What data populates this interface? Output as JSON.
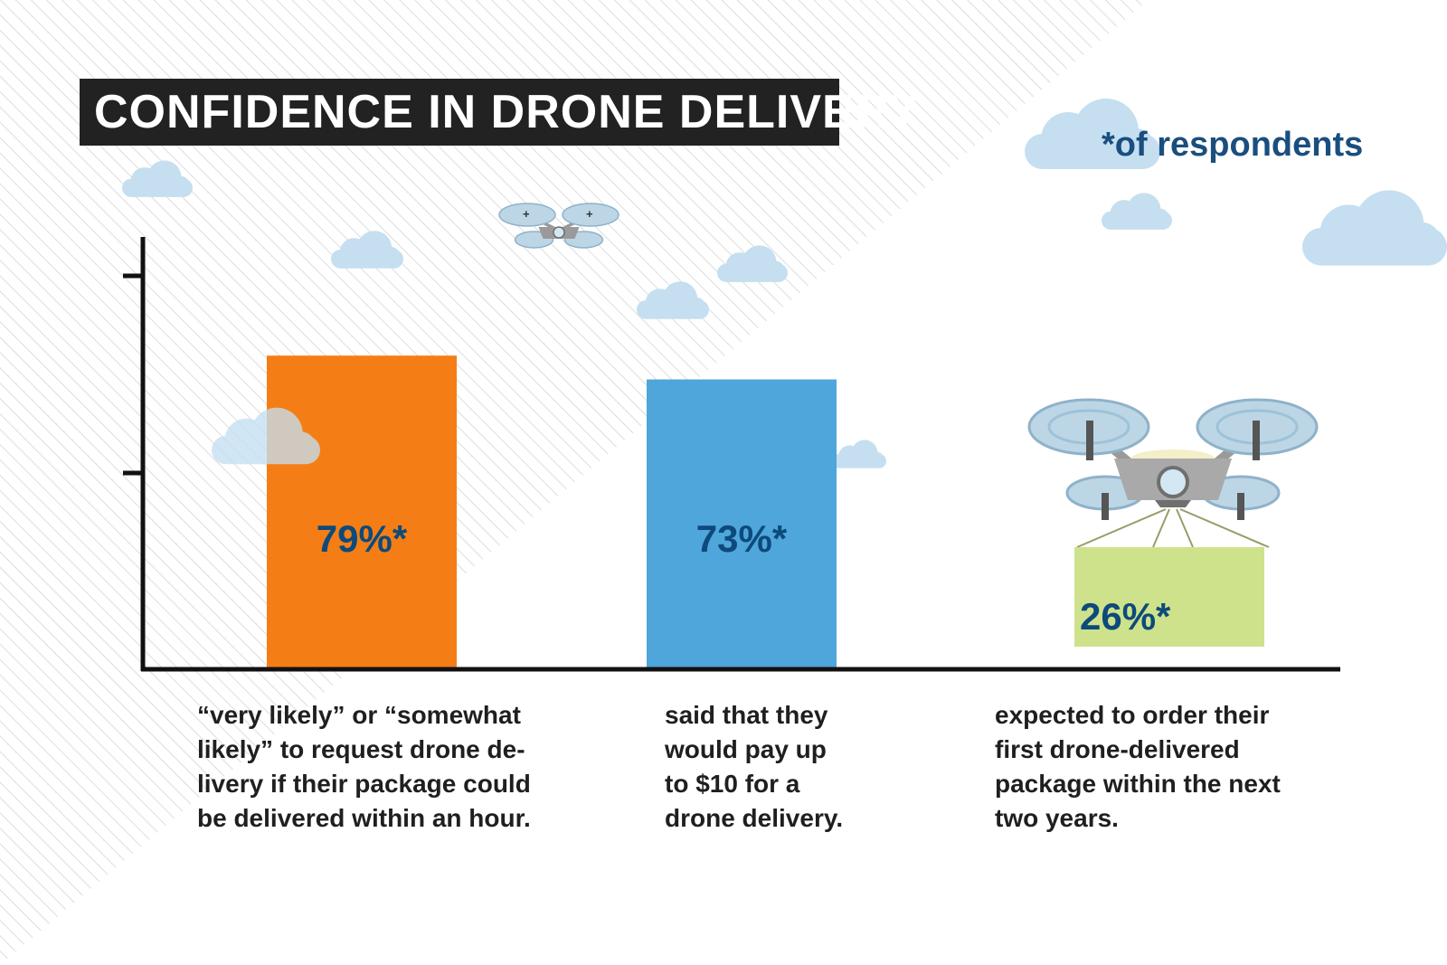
{
  "colors": {
    "bar1": "#f47e15",
    "bar2": "#4ea6db",
    "bar3": "#cde28b",
    "value_text": "#0d4a7b",
    "note_text": "#1a4e7e",
    "cloud": "#c5dff1",
    "axis": "#111111"
  },
  "icons": [
    "cloud-icon",
    "drone-icon",
    "drone-with-package-icon"
  ],
  "header": {
    "title": "CONFIDENCE IN DRONE DELIVERY"
  },
  "footnote": "*of respondents",
  "chart_data": {
    "type": "bar",
    "title": "CONFIDENCE IN DRONE DELIVERY",
    "categories": [
      "“very likely” or “somewhat likely” to request drone de-livery if their package could be delivered within an hour.",
      "said that they would pay up to $10 for a drone delivery.",
      "expected to order their first drone-delivered package within the next two years."
    ],
    "values": [
      79,
      73,
      26
    ],
    "data_labels": [
      "79%*",
      "73%*",
      "26%*"
    ],
    "ylim": [
      0,
      100
    ],
    "grid": false,
    "xlabel": "",
    "ylabel": ""
  },
  "descriptions": [
    "“very likely” or “somewhat\nlikely” to request drone de-\nlivery if their package could\nbe delivered within an hour.",
    "said that they\nwould pay up\nto $10 for a\ndrone delivery.",
    "expected to order their\nfirst drone-delivered\npackage within the next\ntwo years."
  ]
}
